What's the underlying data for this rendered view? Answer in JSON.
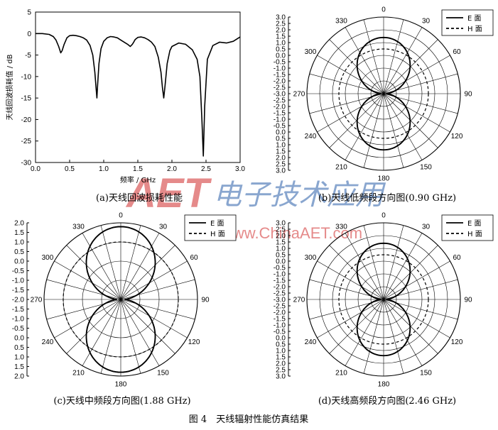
{
  "figure_caption": "图 4　天线辐射性能仿真结果",
  "watermark": {
    "logo": "AET",
    "brand": "电子技术应用",
    "url": "www.ChinaAET.com"
  },
  "colors": {
    "curve": "#000000",
    "grid": "#000000",
    "watermark_red": "#d12b2b",
    "watermark_blue": "#2a5ea8"
  },
  "chart_data": [
    {
      "id": "a",
      "type": "line",
      "caption": "(a)天线回波损耗性能",
      "xlabel": "频率 / GHz",
      "ylabel": "天线回波损耗值 / dB",
      "xlim": [
        0,
        3.0
      ],
      "ylim": [
        -30,
        5
      ],
      "xticks": [
        "0.0",
        "0.5",
        "1.0",
        "1.5",
        "2.0",
        "2.5",
        "3.0"
      ],
      "yticks": [
        "5",
        "0",
        "-5",
        "-10",
        "-15",
        "-20",
        "-25",
        "-30"
      ],
      "series": [
        {
          "x": [
            0.0,
            0.1,
            0.2,
            0.26,
            0.3,
            0.34,
            0.37,
            0.39,
            0.42,
            0.46,
            0.5,
            0.55,
            0.6,
            0.65,
            0.7,
            0.75,
            0.8,
            0.84,
            0.87,
            0.89,
            0.9,
            0.91,
            0.93,
            0.96,
            1.0,
            1.05,
            1.1,
            1.15,
            1.2,
            1.25,
            1.3,
            1.35,
            1.39,
            1.42,
            1.44,
            1.46,
            1.5,
            1.55,
            1.6,
            1.65,
            1.7,
            1.75,
            1.8,
            1.84,
            1.86,
            1.88,
            1.9,
            1.93,
            1.97,
            2.0,
            2.1,
            2.2,
            2.3,
            2.37,
            2.41,
            2.44,
            2.46,
            2.48,
            2.52,
            2.6,
            2.7,
            2.8,
            2.9,
            3.0
          ],
          "y": [
            0.0,
            0.0,
            -0.2,
            -0.7,
            -1.5,
            -3.0,
            -4.5,
            -4.0,
            -2.5,
            -1.0,
            -0.5,
            -0.4,
            -0.5,
            -0.7,
            -1.0,
            -1.5,
            -2.8,
            -5.0,
            -9.0,
            -13.0,
            -15.0,
            -12.0,
            -7.0,
            -3.5,
            -1.8,
            -1.0,
            -0.7,
            -0.8,
            -1.0,
            -1.5,
            -2.0,
            -2.5,
            -3.0,
            -2.5,
            -2.0,
            -1.4,
            -0.9,
            -0.8,
            -1.0,
            -1.4,
            -2.0,
            -3.0,
            -5.5,
            -9.0,
            -12.5,
            -15.0,
            -12.0,
            -7.0,
            -4.0,
            -3.0,
            -2.2,
            -2.5,
            -3.8,
            -6.0,
            -10.0,
            -20.0,
            -28.5,
            -17.0,
            -6.0,
            -2.8,
            -2.0,
            -2.2,
            -1.8,
            -0.8
          ]
        }
      ]
    },
    {
      "id": "b",
      "type": "polar",
      "caption": "(b)天线低频段方向图(0.90 GHz)",
      "rmax": 3.0,
      "rticks": [
        "3.0",
        "2.5",
        "2.0",
        "1.5",
        "1.0",
        "0.5",
        "0.0",
        "-0.5",
        "-1.0",
        "-1.5",
        "-2.0",
        "-2.5",
        "-3.0",
        "-2.5",
        "-2.0",
        "-1.5",
        "-1.0",
        "-0.5",
        "0.0",
        "0.5",
        "1.0",
        "1.5",
        "2.0",
        "2.5",
        "3.0"
      ],
      "angle_labels": [
        "0",
        "30",
        "60",
        "90",
        "120",
        "150",
        "180",
        "210",
        "240",
        "270",
        "300",
        "330"
      ],
      "legend": [
        {
          "name": "E 面",
          "style": "solid"
        },
        {
          "name": "H 面",
          "style": "dashed"
        }
      ],
      "series": [
        {
          "name": "E 面",
          "style": "solid",
          "pattern": "figure-eight",
          "max": 2.2,
          "min": 0.1
        },
        {
          "name": "H 面",
          "style": "dashed",
          "pattern": "circle",
          "radius": 1.75
        }
      ]
    },
    {
      "id": "c",
      "type": "polar",
      "caption": "(c)天线中频段方向图(1.88 GHz)",
      "rmax": 2.0,
      "rticks": [
        "2.0",
        "1.5",
        "1.0",
        "0.5",
        "0.0",
        "-0.5",
        "-1.0",
        "-1.5",
        "-2.0",
        "-1.5",
        "-1.0",
        "-0.5",
        "0.0",
        "0.5",
        "1.0",
        "1.5",
        "2.0"
      ],
      "angle_labels": [
        "0",
        "30",
        "60",
        "90",
        "120",
        "150",
        "180",
        "210",
        "240",
        "270",
        "300",
        "330"
      ],
      "legend": [
        {
          "name": "E 面",
          "style": "solid"
        },
        {
          "name": "H 面",
          "style": "dashed"
        }
      ],
      "series": [
        {
          "name": "E 面",
          "style": "solid",
          "pattern": "figure-eight",
          "max": 1.9,
          "min": 0.1
        },
        {
          "name": "H 面",
          "style": "dashed",
          "pattern": "circle",
          "radius": 1.5
        }
      ]
    },
    {
      "id": "d",
      "type": "polar",
      "caption": "(d)天线高频段方向图(2.46 GHz)",
      "rmax": 3.0,
      "rticks": [
        "3.0",
        "2.5",
        "2.0",
        "1.5",
        "1.0",
        "0.5",
        "0.0",
        "-0.5",
        "-1.0",
        "-1.5",
        "-2.0",
        "-2.5",
        "-3.0",
        "-2.5",
        "-2.0",
        "-1.5",
        "-1.0",
        "-0.5",
        "0.0",
        "0.5",
        "1.0",
        "1.5",
        "2.0",
        "2.5",
        "3.0"
      ],
      "angle_labels": [
        "0",
        "30",
        "60",
        "90",
        "120",
        "150",
        "180",
        "210",
        "240",
        "270",
        "300",
        "330"
      ],
      "legend": [
        {
          "name": "E 面",
          "style": "solid"
        },
        {
          "name": "H 面",
          "style": "dashed"
        }
      ],
      "series": [
        {
          "name": "E 面",
          "style": "solid",
          "pattern": "figure-eight",
          "max": 2.2,
          "min": 0.1
        },
        {
          "name": "H 面",
          "style": "dashed",
          "pattern": "circle",
          "radius": 1.75
        }
      ]
    }
  ]
}
